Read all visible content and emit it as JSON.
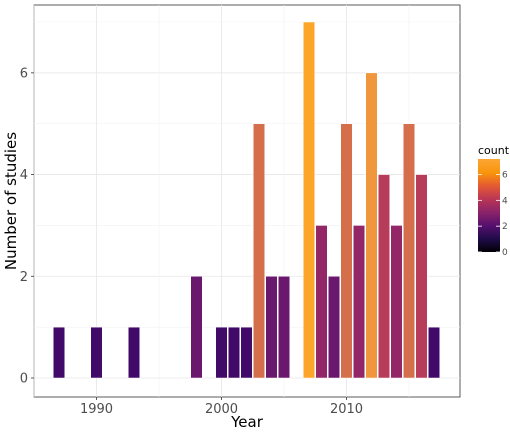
{
  "chart_data": {
    "type": "bar",
    "xlabel": "Year",
    "ylabel": "Number of studies",
    "x_ticks": [
      1990,
      2000,
      2010
    ],
    "y_ticks": [
      0,
      2,
      4,
      6
    ],
    "xlim": [
      1985,
      2019
    ],
    "ylim": [
      0,
      7.35
    ],
    "grid": true,
    "x": [
      1987,
      1990,
      1993,
      1998,
      2000,
      2001,
      2002,
      2003,
      2004,
      2005,
      2007,
      2008,
      2009,
      2010,
      2011,
      2012,
      2013,
      2014,
      2015,
      2016,
      2017
    ],
    "values": [
      1,
      1,
      1,
      2,
      1,
      1,
      1,
      5,
      2,
      2,
      7,
      3,
      2,
      5,
      3,
      6,
      4,
      3,
      5,
      4,
      1
    ],
    "legend": {
      "title": "count",
      "position": "right",
      "ticks": [
        0,
        2,
        4,
        6
      ],
      "colorscale": "inferno"
    }
  }
}
